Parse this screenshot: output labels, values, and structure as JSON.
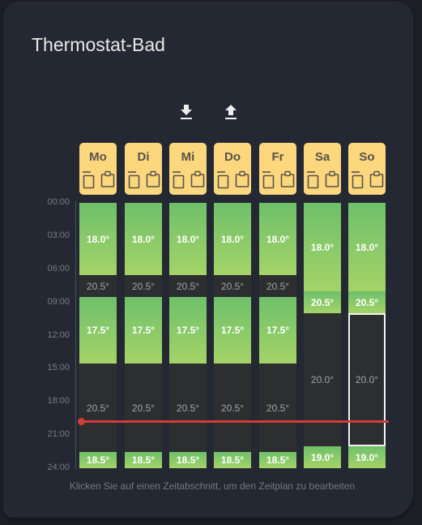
{
  "card": {
    "title": "Thermostat-Bad"
  },
  "toolbar": {
    "download_icon": "download-icon",
    "upload_icon": "upload-icon"
  },
  "colors": {
    "accent": "#fcd77e",
    "comfort_top": "#6fc06a",
    "comfort_bottom": "#a5d368",
    "setback": "#2d2e30",
    "now_marker": "#d23c35"
  },
  "time_axis": [
    "00:00",
    "03:00",
    "06:00",
    "09:00",
    "12:00",
    "15:00",
    "18:00",
    "21:00",
    "24:00"
  ],
  "days": [
    {
      "label": "Mo",
      "segments": [
        {
          "end": "06:30",
          "temp": "18.0°",
          "type": "comfort"
        },
        {
          "end": "08:30",
          "temp": "20.5°",
          "type": "setback"
        },
        {
          "end": "14:30",
          "temp": "17.5°",
          "type": "comfort"
        },
        {
          "end": "22:30",
          "temp": "20.5°",
          "type": "setback"
        },
        {
          "end": "24:00",
          "temp": "18.5°",
          "type": "comfort"
        }
      ]
    },
    {
      "label": "Di",
      "segments": [
        {
          "end": "06:30",
          "temp": "18.0°",
          "type": "comfort"
        },
        {
          "end": "08:30",
          "temp": "20.5°",
          "type": "setback"
        },
        {
          "end": "14:30",
          "temp": "17.5°",
          "type": "comfort"
        },
        {
          "end": "22:30",
          "temp": "20.5°",
          "type": "setback"
        },
        {
          "end": "24:00",
          "temp": "18.5°",
          "type": "comfort"
        }
      ]
    },
    {
      "label": "Mi",
      "segments": [
        {
          "end": "06:30",
          "temp": "18.0°",
          "type": "comfort"
        },
        {
          "end": "08:30",
          "temp": "20.5°",
          "type": "setback"
        },
        {
          "end": "14:30",
          "temp": "17.5°",
          "type": "comfort"
        },
        {
          "end": "22:30",
          "temp": "20.5°",
          "type": "setback"
        },
        {
          "end": "24:00",
          "temp": "18.5°",
          "type": "comfort"
        }
      ]
    },
    {
      "label": "Do",
      "segments": [
        {
          "end": "06:30",
          "temp": "18.0°",
          "type": "comfort"
        },
        {
          "end": "08:30",
          "temp": "20.5°",
          "type": "setback"
        },
        {
          "end": "14:30",
          "temp": "17.5°",
          "type": "comfort"
        },
        {
          "end": "22:30",
          "temp": "20.5°",
          "type": "setback"
        },
        {
          "end": "24:00",
          "temp": "18.5°",
          "type": "comfort"
        }
      ]
    },
    {
      "label": "Fr",
      "segments": [
        {
          "end": "06:30",
          "temp": "18.0°",
          "type": "comfort"
        },
        {
          "end": "08:30",
          "temp": "20.5°",
          "type": "setback"
        },
        {
          "end": "14:30",
          "temp": "17.5°",
          "type": "comfort"
        },
        {
          "end": "22:30",
          "temp": "20.5°",
          "type": "setback"
        },
        {
          "end": "24:00",
          "temp": "18.5°",
          "type": "comfort"
        }
      ]
    },
    {
      "label": "Sa",
      "segments": [
        {
          "end": "08:00",
          "temp": "18.0°",
          "type": "comfort"
        },
        {
          "end": "10:00",
          "temp": "20.5°",
          "type": "comfort"
        },
        {
          "end": "22:00",
          "temp": "20.0°",
          "type": "setback"
        },
        {
          "end": "24:00",
          "temp": "19.0°",
          "type": "comfort"
        }
      ]
    },
    {
      "label": "So",
      "segments": [
        {
          "end": "08:00",
          "temp": "18.0°",
          "type": "comfort"
        },
        {
          "end": "10:00",
          "temp": "20.5°",
          "type": "comfort"
        },
        {
          "end": "22:00",
          "temp": "20.0°",
          "type": "setback",
          "selected": true
        },
        {
          "end": "24:00",
          "temp": "19.0°",
          "type": "comfort"
        }
      ]
    }
  ],
  "current_time": "19:30",
  "hint": "Klicken Sie auf einen Zeitabschnitt, um den Zeitplan zu bearbeiten"
}
